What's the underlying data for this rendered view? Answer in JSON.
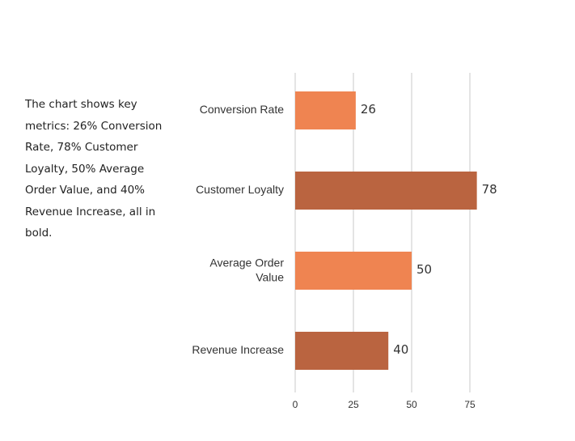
{
  "description": "The chart shows key metrics: 26% Conversion Rate, 78% Customer Loyalty, 50% Average Order Value, and 40% Revenue Increase, all in bold.",
  "chart_data": {
    "type": "bar",
    "orientation": "horizontal",
    "categories": [
      "Conversion Rate",
      "Customer Loyalty",
      "Average Order Value",
      "Revenue Increase"
    ],
    "values": [
      26,
      78,
      50,
      40
    ],
    "data_labels": [
      "26",
      "78",
      "50",
      "40"
    ],
    "bar_colors": [
      "#EF8451",
      "#BA6440",
      "#EF8451",
      "#BA6440"
    ],
    "xticks": [
      "0",
      "25",
      "50",
      "75"
    ],
    "xlim": [
      0,
      100
    ],
    "grid": "vertical",
    "title": "",
    "xlabel": "",
    "ylabel": ""
  }
}
